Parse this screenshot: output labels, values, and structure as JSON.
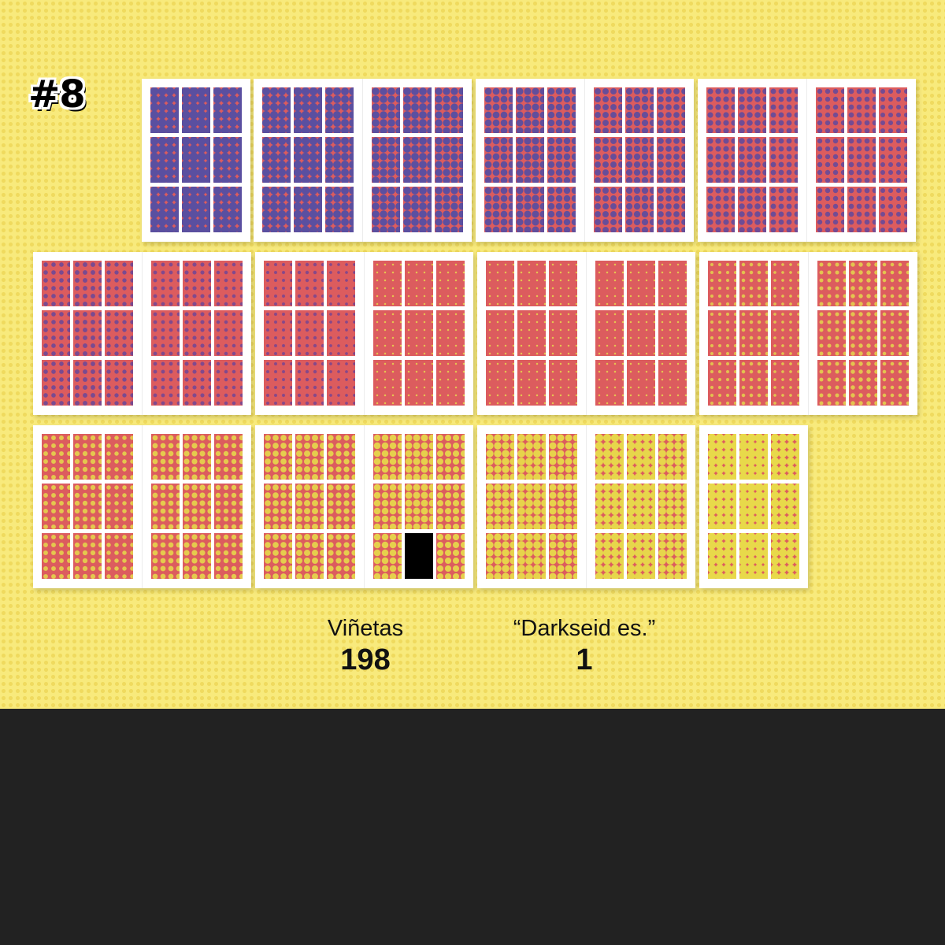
{
  "title": "#8",
  "stats": [
    {
      "label": "Viñetas",
      "value": "198"
    },
    {
      "label": "“Darkseid es.”",
      "value": "1"
    }
  ],
  "colors": {
    "background": "#f8ea7c",
    "footer": "#222222",
    "panel_red": "#dc5c5e",
    "dot_blue": "#5a4fa0",
    "dot_yellow": "#e8d94a",
    "page_white": "#ffffff",
    "highlight_panel": "#000000"
  },
  "grid": {
    "panels_per_page": 9,
    "rows": [
      {
        "pages": [
          1,
          2,
          3,
          4,
          5,
          6,
          7
        ],
        "starts_with_single_page": true
      },
      {
        "pages": [
          8,
          9,
          10,
          11,
          12,
          13,
          14,
          15
        ],
        "starts_with_single_page": false
      },
      {
        "pages": [
          16,
          17,
          18,
          19,
          20,
          21,
          22
        ],
        "starts_with_single_page": false
      }
    ],
    "highlighted_panel": {
      "page": 19,
      "panel": 8
    }
  }
}
